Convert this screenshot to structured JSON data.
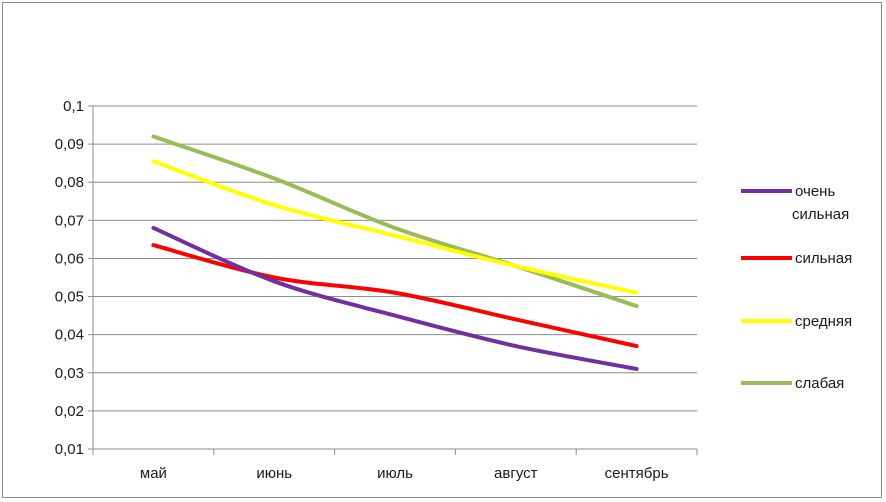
{
  "chart_data": {
    "type": "line",
    "title": "",
    "xlabel": "",
    "ylabel": "",
    "categories": [
      "май",
      "июнь",
      "июль",
      "август",
      "сентябрь"
    ],
    "y_tick_labels": [
      "0,01",
      "0,02",
      "0,03",
      "0,04",
      "0,05",
      "0,06",
      "0,07",
      "0,08",
      "0,09",
      "0,1"
    ],
    "ylim": [
      0.01,
      0.1
    ],
    "grid": true,
    "legend_position": "right",
    "series": [
      {
        "name": "очень сильная",
        "name_lines": [
          "очень",
          "сильная"
        ],
        "color": "#7030a0",
        "values": [
          0.068,
          0.054,
          0.045,
          0.037,
          0.031
        ]
      },
      {
        "name": "сильная",
        "name_lines": [
          "сильная"
        ],
        "color": "#ff0000",
        "values": [
          0.0635,
          0.055,
          0.051,
          0.044,
          0.037
        ]
      },
      {
        "name": "средняя",
        "name_lines": [
          "средняя"
        ],
        "color": "#ffff00",
        "values": [
          0.0855,
          0.074,
          0.066,
          0.058,
          0.051
        ]
      },
      {
        "name": "слабая",
        "name_lines": [
          "слабая"
        ],
        "color": "#9bbb59",
        "values": [
          0.092,
          0.081,
          0.068,
          0.058,
          0.0475
        ]
      }
    ]
  }
}
